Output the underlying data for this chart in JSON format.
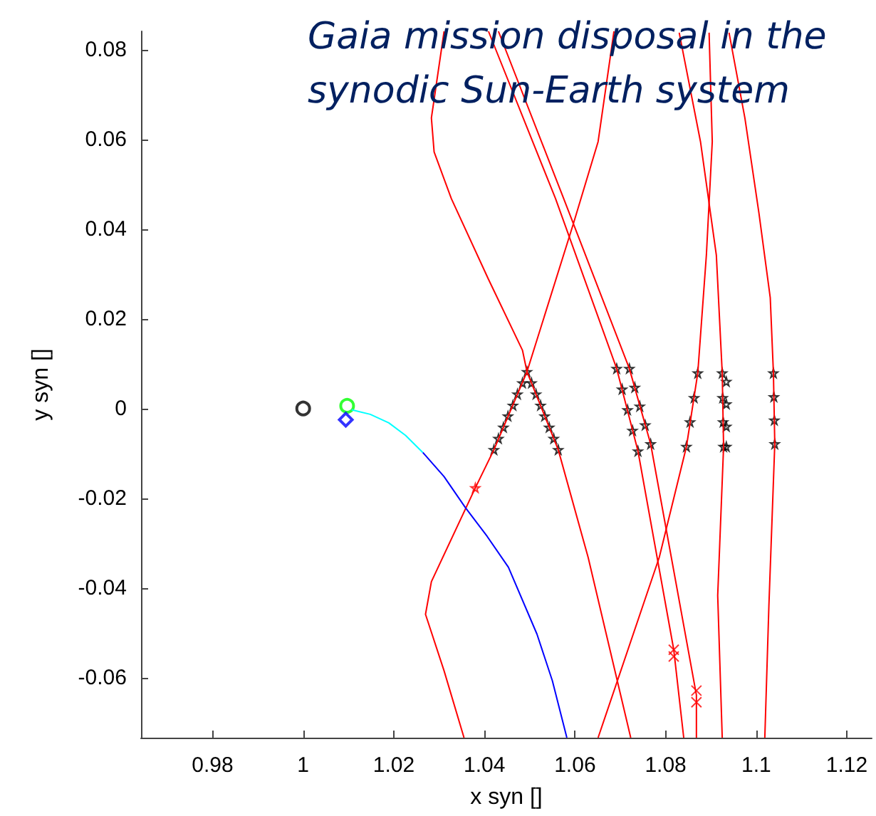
{
  "chart_data": {
    "type": "line",
    "title": "Gaia mission disposal in the synodic Sun-Earth system",
    "xlabel": "x syn []",
    "ylabel": "y syn []",
    "xlim": [
      0.9642,
      1.1255
    ],
    "ylim": [
      -0.0734,
      0.0841
    ],
    "xticks": [
      0.98,
      1,
      1.02,
      1.04,
      1.06,
      1.08,
      1.1,
      1.12
    ],
    "yticks": [
      -0.06,
      -0.04,
      -0.02,
      0,
      0.02,
      0.04,
      0.06,
      0.08
    ],
    "grid": false,
    "series": [
      {
        "marker": "none",
        "color": "#ff0000",
        "x": [
          1.0355,
          1.0311,
          1.027,
          1.0283,
          1.038,
          1.0421,
          1.0494,
          1.0597,
          1.0651,
          1.0686
        ],
        "values": [
          -0.0734,
          -0.0585,
          -0.0459,
          -0.0386,
          -0.0177,
          -0.0092,
          0.0082,
          0.0414,
          0.0595,
          0.0841
        ]
      },
      {
        "marker": "none",
        "color": "#ff0000",
        "x": [
          1.0723,
          1.0629,
          1.0563,
          1.0494,
          1.0484,
          1.0409,
          1.0327,
          1.0289,
          1.0283,
          1.0311
        ],
        "values": [
          -0.0734,
          -0.0332,
          -0.0092,
          0.0082,
          0.013,
          0.0288,
          0.0468,
          0.0572,
          0.0648,
          0.0841
        ]
      },
      {
        "marker": "none",
        "color": "#ff0000",
        "x": [
          1.0409,
          1.0557,
          1.0692,
          1.0739,
          1.0818,
          1.084
        ],
        "values": [
          0.0841,
          0.0468,
          0.0089,
          -0.0095,
          -0.0538,
          -0.0734
        ]
      },
      {
        "marker": "none",
        "color": "#ff0000",
        "x": [
          1.0431,
          1.0575,
          1.072,
          1.0767,
          1.0868,
          1.0868
        ],
        "values": [
          0.0841,
          0.0468,
          0.0089,
          -0.0079,
          -0.0639,
          -0.0734
        ]
      },
      {
        "marker": "none",
        "color": "#ff0000",
        "x": [
          1.0651,
          1.0786,
          1.0846,
          1.0871,
          1.089,
          1.0903,
          1.0896
        ],
        "values": [
          -0.0734,
          -0.0332,
          -0.0085,
          0.0079,
          0.0342,
          0.0595,
          0.0838
        ]
      },
      {
        "marker": "none",
        "color": "#ff0000",
        "x": [
          1.083,
          1.0877,
          1.0912,
          1.0925,
          1.0928,
          1.0915,
          1.0925
        ],
        "values": [
          0.0838,
          0.0595,
          0.0342,
          0.0079,
          -0.0085,
          -0.0417,
          -0.0734
        ]
      },
      {
        "marker": "none",
        "color": "#ff0000",
        "x": [
          1.094,
          1.0975,
          1.1006,
          1.1031,
          1.1038,
          1.1041,
          1.1028,
          1.1019
        ],
        "values": [
          0.0838,
          0.0648,
          0.0436,
          0.0247,
          0.0079,
          -0.0079,
          -0.044,
          -0.0734
        ]
      },
      {
        "marker": "none",
        "color": "#0000ff",
        "x": [
          1.0264,
          1.0311,
          1.0358,
          1.0406,
          1.0453,
          1.0516,
          1.055,
          1.0582
        ],
        "values": [
          -0.0098,
          -0.0152,
          -0.0221,
          -0.0285,
          -0.0354,
          -0.0503,
          -0.0607,
          -0.0734
        ]
      },
      {
        "marker": "none",
        "color": "#00ffff",
        "x": [
          1.0107,
          1.0148,
          1.0189,
          1.0226,
          1.0264
        ],
        "values": [
          -0.0003,
          -0.0013,
          -0.0032,
          -0.006,
          -0.0098
        ]
      },
      {
        "type": "scatter",
        "marker": "star",
        "color": "#000000",
        "x": [
          1.0421,
          1.0431,
          1.0442,
          1.0452,
          1.0463,
          1.0473,
          1.0484,
          1.0494,
          1.0504,
          1.0514,
          1.0524,
          1.0533,
          1.0543,
          1.0553,
          1.0563,
          1.0692,
          1.0704,
          1.0716,
          1.0727,
          1.0739,
          1.072,
          1.0732,
          1.0743,
          1.0755,
          1.0767,
          1.0846,
          1.0854,
          1.0863,
          1.0871,
          1.0925,
          1.0926,
          1.0927,
          1.0928,
          1.0934,
          1.0934,
          1.0934,
          1.0934,
          1.1038,
          1.1039,
          1.104,
          1.1041
        ],
        "values": [
          -0.0092,
          -0.0067,
          -0.0042,
          -0.0017,
          0.0007,
          0.0032,
          0.0057,
          0.0082,
          0.0057,
          0.0032,
          0.0007,
          -0.0017,
          -0.0042,
          -0.0067,
          -0.0092,
          0.0089,
          0.0043,
          -0.0003,
          -0.0049,
          -0.0095,
          0.0089,
          0.0047,
          0.0005,
          -0.0037,
          -0.0079,
          -0.0085,
          -0.003,
          0.0024,
          0.0079,
          0.0079,
          0.0024,
          -0.003,
          -0.0085,
          0.006,
          0.001,
          -0.004,
          -0.0085,
          0.0079,
          0.0026,
          -0.0026,
          -0.0079
        ]
      },
      {
        "type": "scatter",
        "marker": "star",
        "color": "#ff0000",
        "x": [
          1.038
        ],
        "values": [
          -0.0177
        ]
      },
      {
        "type": "scatter",
        "marker": "cross",
        "color": "#ff0000",
        "x": [
          1.0818,
          1.0818,
          1.0868,
          1.0868
        ],
        "values": [
          -0.0538,
          -0.0553,
          -0.0629,
          -0.0655
        ]
      },
      {
        "type": "scatter",
        "marker": "circle",
        "color": "#000000",
        "x": [
          1
        ],
        "values": [
          0
        ]
      },
      {
        "type": "scatter",
        "marker": "circle",
        "color": "#00ff00",
        "x": [
          1.0097
        ],
        "values": [
          0.0006
        ]
      },
      {
        "type": "scatter",
        "marker": "diamond",
        "color": "#0000ff",
        "x": [
          1.0094
        ],
        "values": [
          -0.0025
        ]
      }
    ]
  }
}
